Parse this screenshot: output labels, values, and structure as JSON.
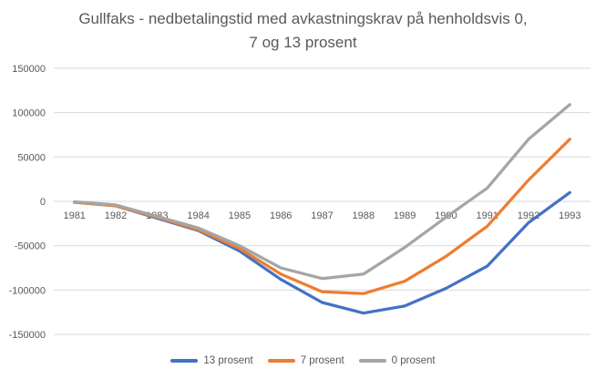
{
  "chart_data": {
    "type": "line",
    "title": "Gullfaks - nedbetalingstid med avkastningskrav på henholdsvis 0, 7 og 13 prosent",
    "title_lines": [
      "Gullfaks - nedbetalingstid med avkastningskrav på henholdsvis 0,",
      "7 og 13 prosent"
    ],
    "categories": [
      "1981",
      "1982",
      "1983",
      "1984",
      "1985",
      "1986",
      "1987",
      "1988",
      "1989",
      "1990",
      "1991",
      "1992",
      "1993"
    ],
    "series": [
      {
        "name": "13 prosent",
        "color": "#4472C4",
        "values": [
          -1000,
          -5000,
          -19000,
          -33000,
          -56000,
          -88000,
          -114000,
          -126000,
          -118000,
          -98000,
          -73000,
          -24000,
          10000
        ]
      },
      {
        "name": "7 prosent",
        "color": "#ED7D31",
        "values": [
          -1000,
          -5000,
          -18000,
          -32000,
          -53000,
          -82000,
          -102000,
          -104000,
          -90000,
          -62000,
          -28000,
          24000,
          70000
        ]
      },
      {
        "name": "0 prosent",
        "color": "#A5A5A5",
        "values": [
          -500,
          -4000,
          -17000,
          -30000,
          -50000,
          -75000,
          -87000,
          -82000,
          -52000,
          -18000,
          15000,
          70000,
          109000
        ]
      }
    ],
    "ylim": [
      -150000,
      150000
    ],
    "yticks": [
      150000,
      100000,
      50000,
      0,
      -50000,
      -100000,
      -150000
    ],
    "xlabel": "",
    "ylabel": "",
    "grid": true,
    "legend_position": "bottom",
    "colors": {
      "title_text": "#595959",
      "axis_text": "#595959",
      "gridline": "#D9D9D9",
      "background": "#FFFFFF"
    }
  }
}
